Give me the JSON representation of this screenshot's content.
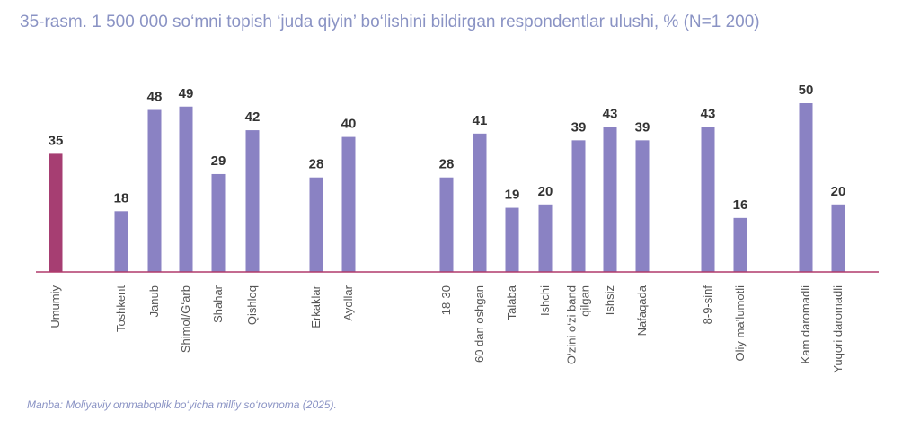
{
  "title": "35-rasm. 1 500 000 so‘mni topish ‘juda qiyin’ bo‘lishini bildirgan respondentlar ulushi, % (N=1 200)",
  "source": "Manba: Moliyaviy ommaboplik bo‘yicha milliy so‘rovnoma (2025).",
  "colors": {
    "total": "#a63e72",
    "bars": "#8a82c3",
    "baseline": "#b03a6b"
  },
  "chart_data": {
    "type": "bar",
    "ylim": [
      0,
      50
    ],
    "grid": false,
    "legend": "none",
    "categories": [
      [
        "Umumiy"
      ],
      [
        "Toshkent"
      ],
      [
        "Janub"
      ],
      [
        "Shimol/G‘arb"
      ],
      [
        "Shahar"
      ],
      [
        "Qishloq"
      ],
      [
        "Erkaklar"
      ],
      [
        "Ayollar"
      ],
      [
        "18-30"
      ],
      [
        "60 dan oshgan"
      ],
      [
        "Talaba"
      ],
      [
        "Ishchi"
      ],
      [
        "O‘zini o‘zi band",
        "qilgan"
      ],
      [
        "Ishsiz"
      ],
      [
        "Nafaqada"
      ],
      [
        "8-9-sinf"
      ],
      [
        "Oliy ma’lumotli"
      ],
      [
        "Kam daromadli"
      ],
      [
        "Yuqori daromadli"
      ]
    ],
    "values": [
      35,
      18,
      48,
      49,
      29,
      42,
      28,
      40,
      28,
      41,
      19,
      20,
      39,
      43,
      39,
      43,
      16,
      50,
      20
    ],
    "highlight_index": 0
  }
}
